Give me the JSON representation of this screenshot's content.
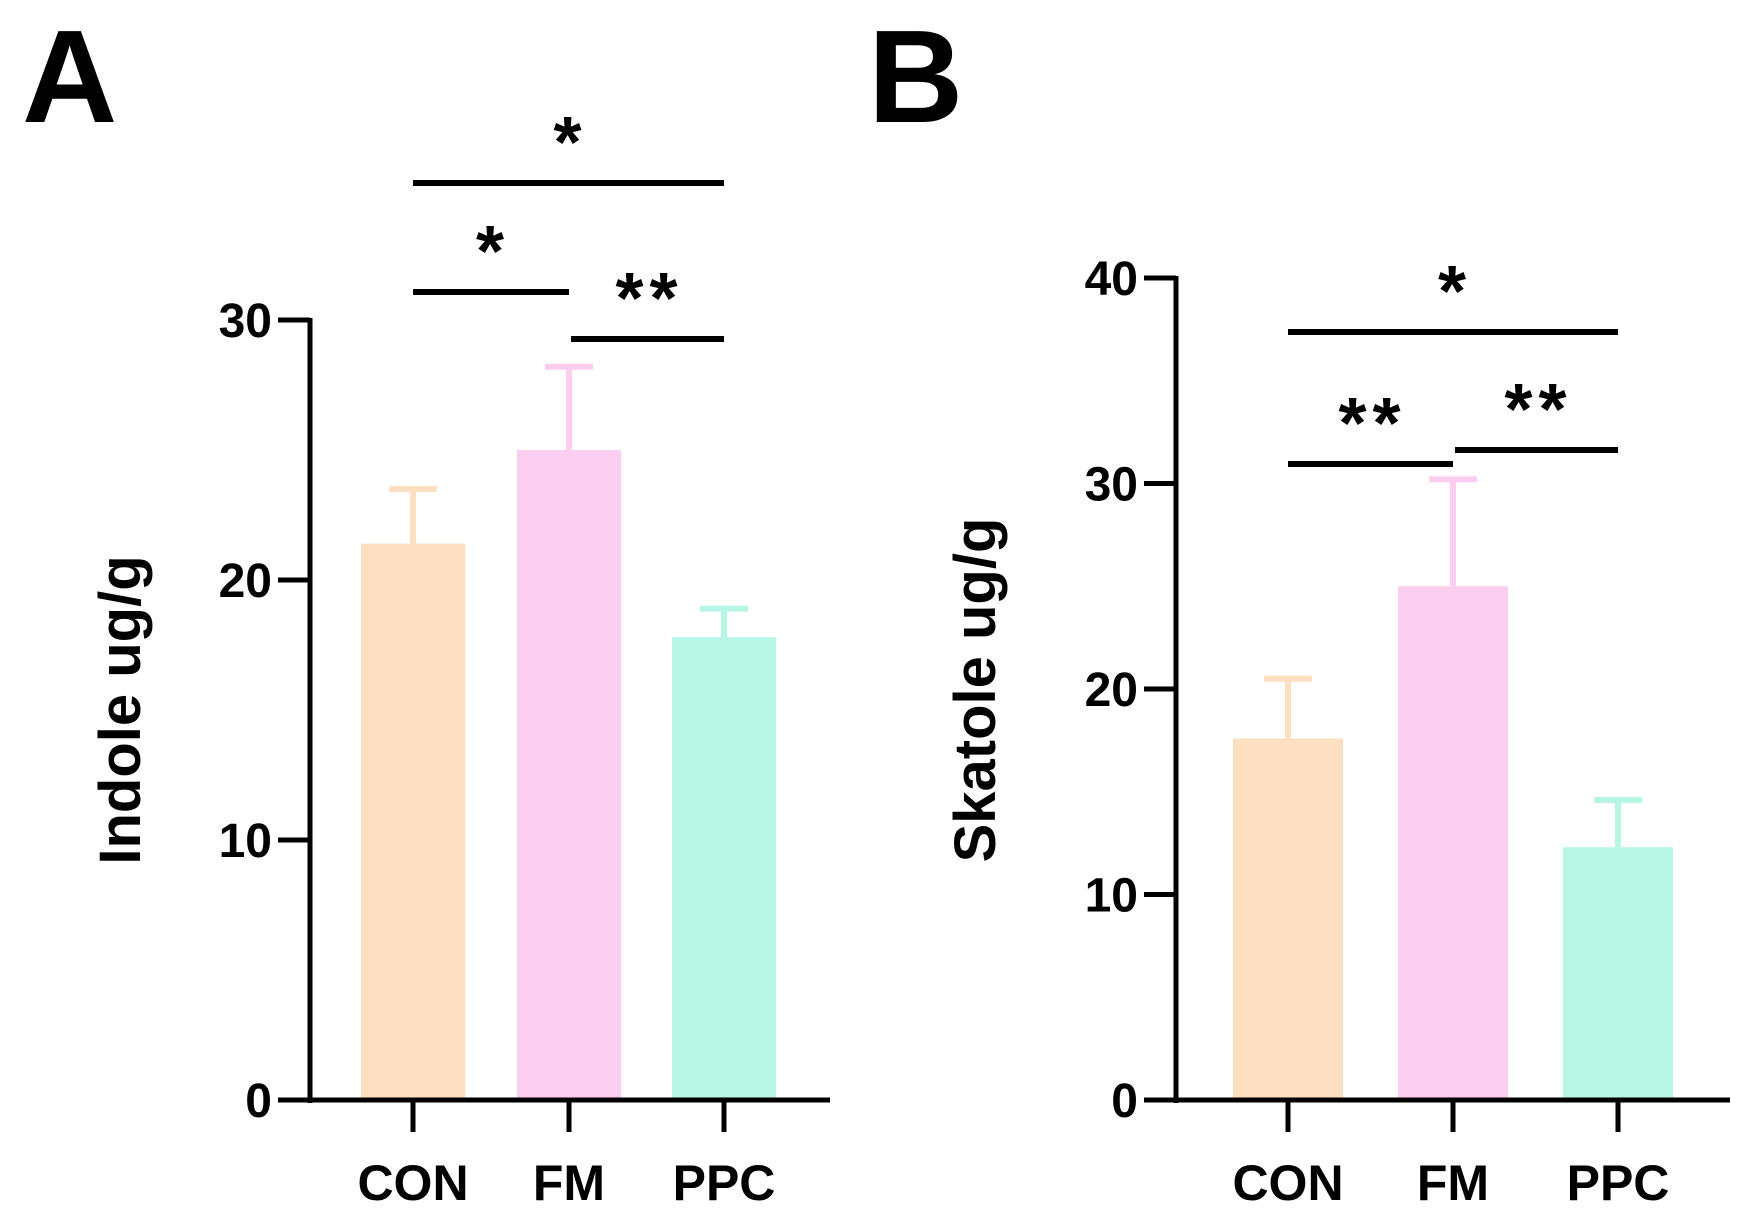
{
  "colors": {
    "CON": "#fde0c2",
    "FM": "#fbcdee",
    "PPC": "#b7f5e4",
    "axis": "#000000"
  },
  "chart_data": [
    {
      "panel": "A",
      "type": "bar",
      "categories": [
        "CON",
        "FM",
        "PPC"
      ],
      "values": [
        21.4,
        25.0,
        17.8
      ],
      "errors": [
        2.1,
        3.2,
        1.1
      ],
      "ylabel": "Indole   ug/g",
      "xlabel": "",
      "ylim": [
        0,
        30
      ],
      "yticks": [
        0,
        10,
        20,
        30
      ],
      "significance": [
        {
          "from": 0,
          "to": 1,
          "label": "*"
        },
        {
          "from": 1,
          "to": 2,
          "label": "**"
        },
        {
          "from": 0,
          "to": 2,
          "label": "*"
        }
      ]
    },
    {
      "panel": "B",
      "type": "bar",
      "categories": [
        "CON",
        "FM",
        "PPC"
      ],
      "values": [
        17.6,
        25.0,
        12.3
      ],
      "errors": [
        2.9,
        5.2,
        2.3
      ],
      "ylabel": "Skatole   ug/g",
      "xlabel": "",
      "ylim": [
        0,
        40
      ],
      "yticks": [
        0,
        10,
        20,
        30,
        40
      ],
      "significance": [
        {
          "from": 0,
          "to": 1,
          "label": "**"
        },
        {
          "from": 1,
          "to": 2,
          "label": "**"
        },
        {
          "from": 0,
          "to": 2,
          "label": "*"
        }
      ]
    }
  ]
}
